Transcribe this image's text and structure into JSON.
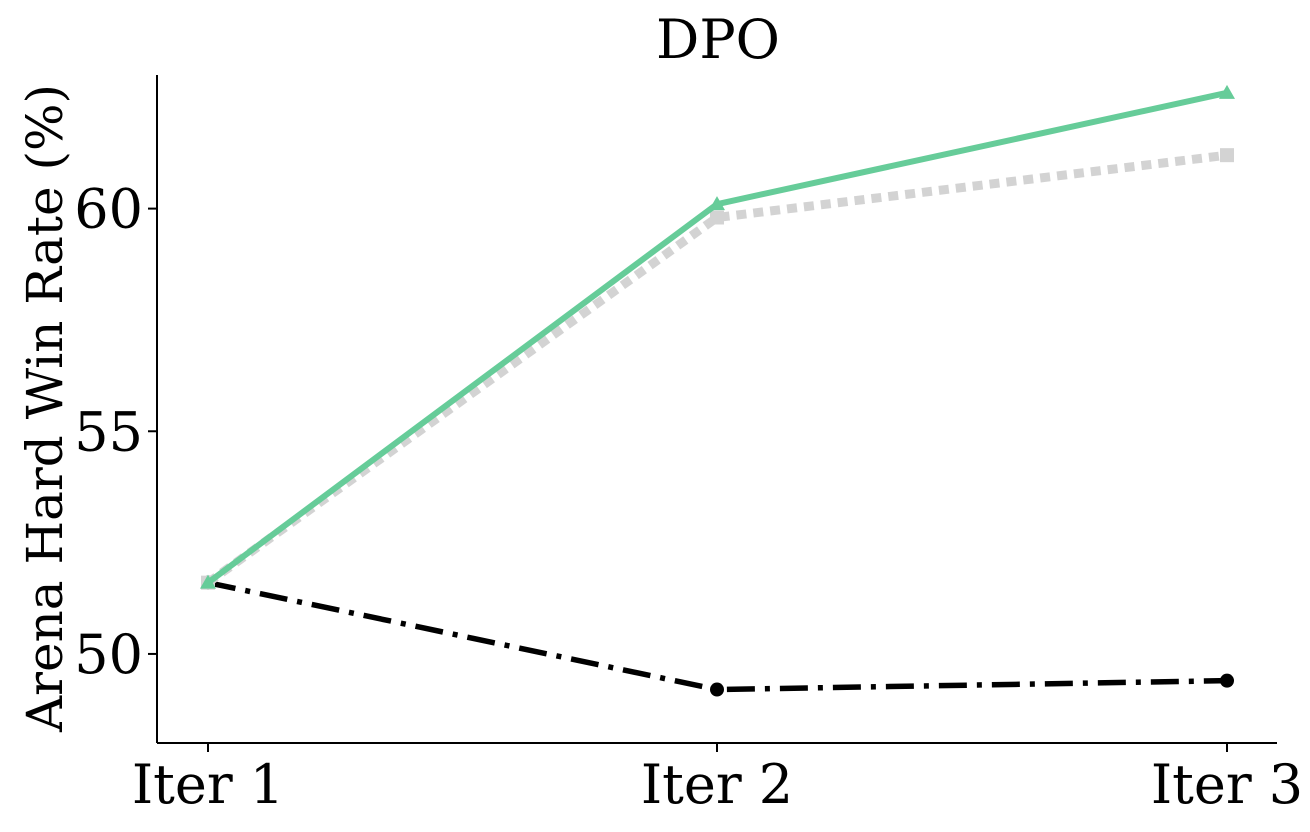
{
  "chart_data": {
    "type": "line",
    "title": "DPO",
    "xlabel": "",
    "ylabel": "Arena Hard Win Rate (%)",
    "categories": [
      "Iter 1",
      "Iter 2",
      "Iter 3"
    ],
    "yticks": [
      50,
      55,
      60
    ],
    "ylim": [
      48.0,
      63.0
    ],
    "grid": false,
    "series": [
      {
        "values": [
          51.6,
          60.1,
          62.6
        ],
        "color": "#66cc99",
        "line_style": "solid",
        "marker": "triangle"
      },
      {
        "values": [
          51.6,
          59.8,
          61.2
        ],
        "color": "#d3d3d3",
        "line_style": "dotted",
        "marker": "square"
      },
      {
        "values": [
          51.6,
          49.2,
          49.4
        ],
        "color": "#000000",
        "line_style": "dash-dot",
        "marker": "circle"
      }
    ]
  }
}
